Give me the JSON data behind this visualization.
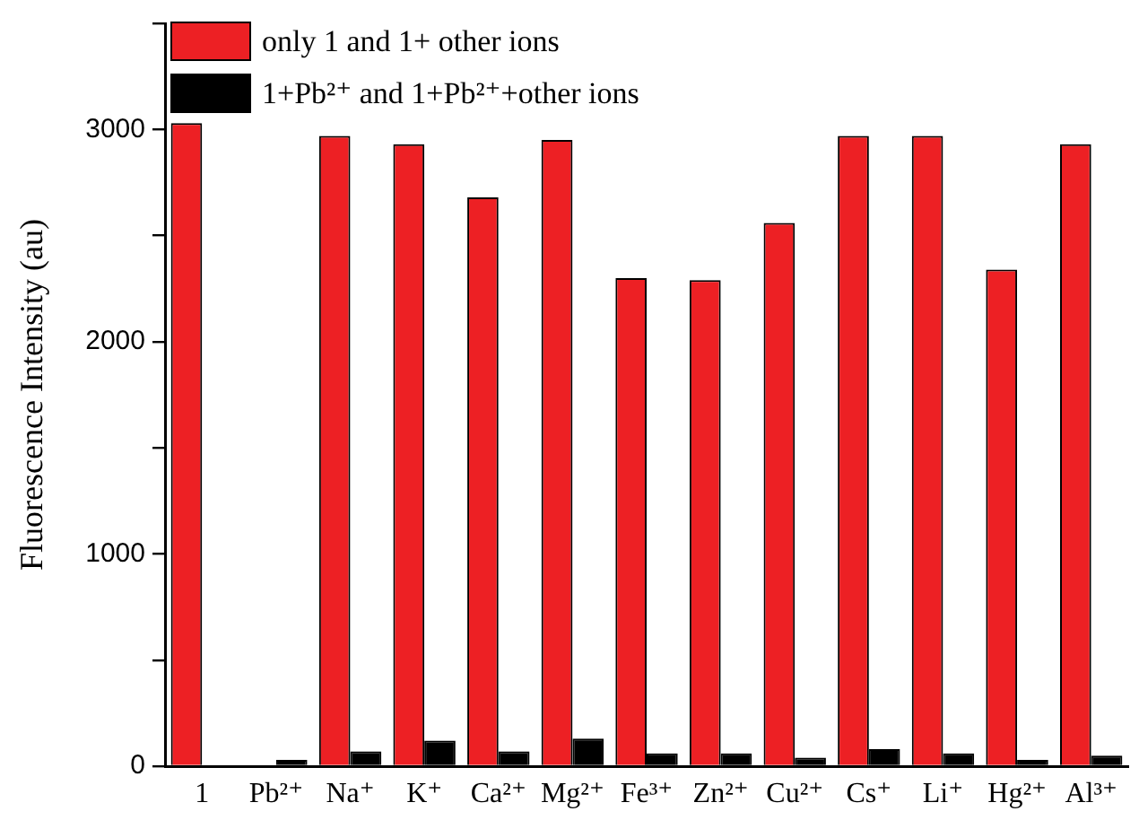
{
  "chart_data": {
    "type": "bar",
    "ylabel": "Fluorescence Intensity (au)",
    "categories": [
      "1",
      "Pb²⁺",
      "Na⁺",
      "K⁺",
      "Ca²⁺",
      "Mg²⁺",
      "Fe³⁺",
      "Zn²⁺",
      "Cu²⁺",
      "Cs⁺",
      "Li⁺",
      "Hg²⁺",
      "Al³⁺"
    ],
    "series": [
      {
        "name": "only 1 and 1+ other ions",
        "color": "#ed2024",
        "values": [
          3030,
          null,
          2970,
          2930,
          2680,
          2950,
          2300,
          2290,
          2560,
          2970,
          2970,
          2340,
          2930
        ]
      },
      {
        "name": "1+Pb²⁺ and 1+Pb²⁺+other ions",
        "color": "#000000",
        "values": [
          null,
          30,
          70,
          120,
          70,
          130,
          60,
          60,
          40,
          80,
          60,
          30,
          50
        ]
      }
    ],
    "ylim": [
      0,
      3500
    ],
    "yticks": [
      0,
      {
        "value": 500,
        "label": null
      },
      1000,
      {
        "value": 1500,
        "label": null
      },
      2000,
      {
        "value": 2500,
        "label": null
      },
      3000,
      {
        "value": 3500,
        "label": null
      }
    ],
    "legend": "top left",
    "grid": false
  }
}
